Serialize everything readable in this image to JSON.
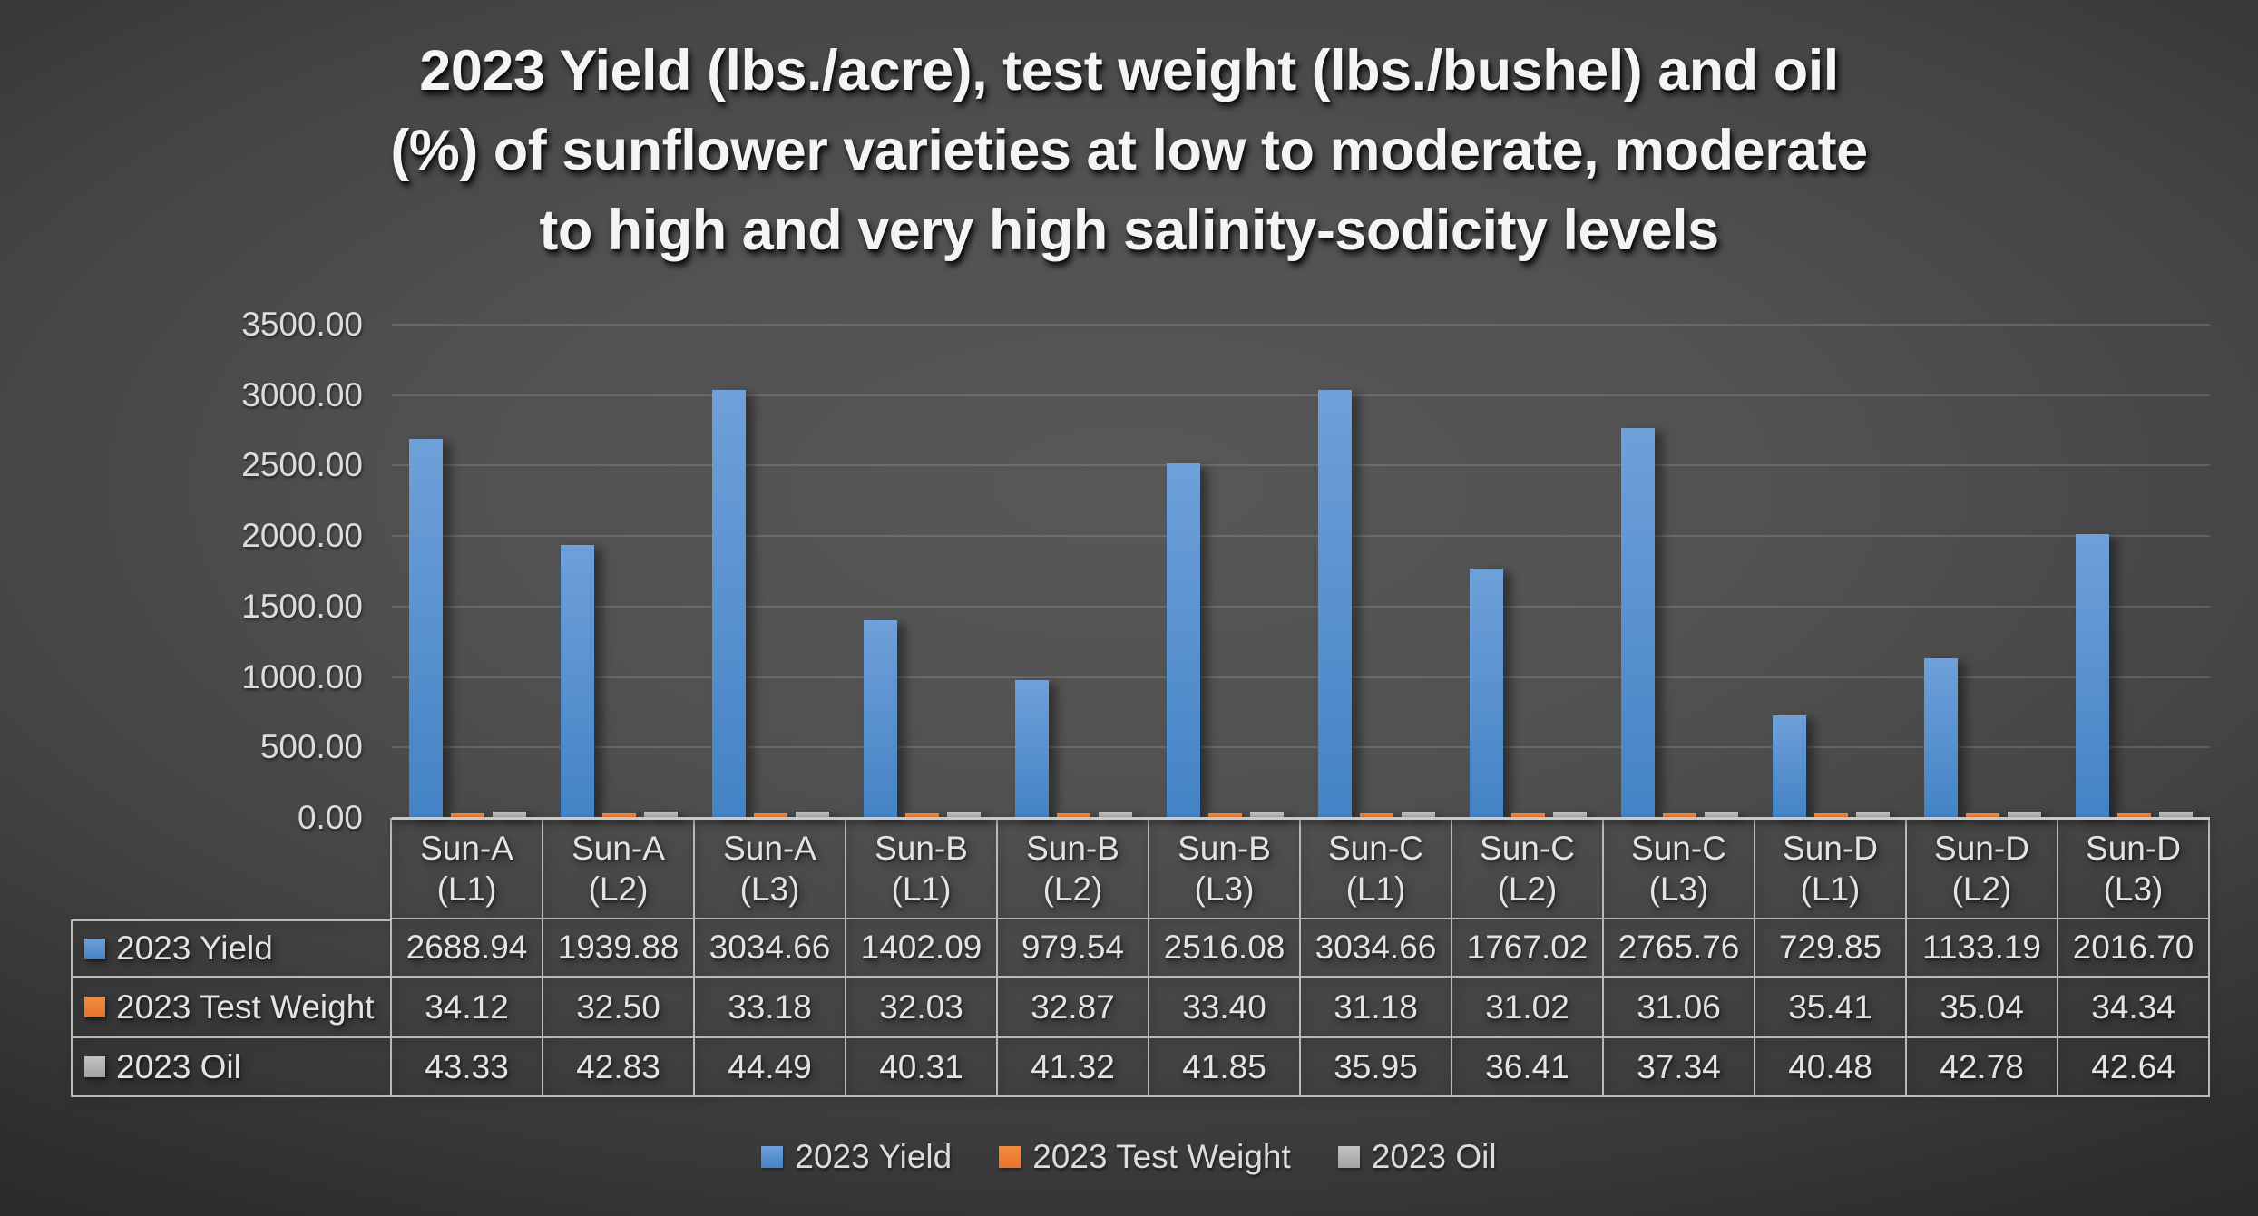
{
  "title": {
    "lines": [
      "2023 Yield (lbs./acre), test weight (lbs./bushel) and oil",
      "(%) of sunflower varieties at low to moderate, moderate",
      "to high and very high salinity-sodicity levels"
    ]
  },
  "chart_data": {
    "type": "bar",
    "title": "2023 Yield (lbs./acre), test weight (lbs./bushel) and oil (%) of sunflower varieties at low to moderate, moderate to high and very high salinity-sodicity levels",
    "categories": [
      "Sun-A (L1)",
      "Sun-A (L2)",
      "Sun-A (L3)",
      "Sun-B (L1)",
      "Sun-B (L2)",
      "Sun-B (L3)",
      "Sun-C (L1)",
      "Sun-C (L2)",
      "Sun-C (L3)",
      "Sun-D (L1)",
      "Sun-D (L2)",
      "Sun-D (L3)"
    ],
    "category_lines": [
      [
        "Sun-A",
        "(L1)"
      ],
      [
        "Sun-A",
        "(L2)"
      ],
      [
        "Sun-A",
        "(L3)"
      ],
      [
        "Sun-B",
        "(L1)"
      ],
      [
        "Sun-B",
        "(L2)"
      ],
      [
        "Sun-B",
        "(L3)"
      ],
      [
        "Sun-C",
        "(L1)"
      ],
      [
        "Sun-C",
        "(L2)"
      ],
      [
        "Sun-C",
        "(L3)"
      ],
      [
        "Sun-D",
        "(L1)"
      ],
      [
        "Sun-D",
        "(L2)"
      ],
      [
        "Sun-D",
        "(L3)"
      ]
    ],
    "series": [
      {
        "name": "2023 Yield",
        "color": "#4383C5",
        "color_light": "#6FA0D9",
        "values": [
          2688.94,
          1939.88,
          3034.66,
          1402.09,
          979.54,
          2516.08,
          3034.66,
          1767.02,
          2765.76,
          729.85,
          1133.19,
          2016.7
        ]
      },
      {
        "name": "2023 Test Weight",
        "color": "#E8732A",
        "color_light": "#F18C44",
        "values": [
          34.12,
          32.5,
          33.18,
          32.03,
          32.87,
          33.4,
          31.18,
          31.02,
          31.06,
          35.41,
          35.04,
          34.34
        ]
      },
      {
        "name": "2023 Oil",
        "color": "#A3A3A3",
        "color_light": "#C2C2C2",
        "values": [
          43.33,
          42.83,
          44.49,
          40.31,
          41.32,
          41.85,
          35.95,
          36.41,
          37.34,
          40.48,
          42.78,
          42.64
        ]
      }
    ],
    "ylim": [
      0,
      3500
    ],
    "ytick_step": 500,
    "ytick_labels": [
      "3500.00",
      "3000.00",
      "2500.00",
      "2000.00",
      "1500.00",
      "1000.00",
      "500.00",
      "0.00"
    ],
    "value_decimals": 2,
    "grid": true,
    "legend_position": "bottom",
    "data_table_shown": true
  }
}
